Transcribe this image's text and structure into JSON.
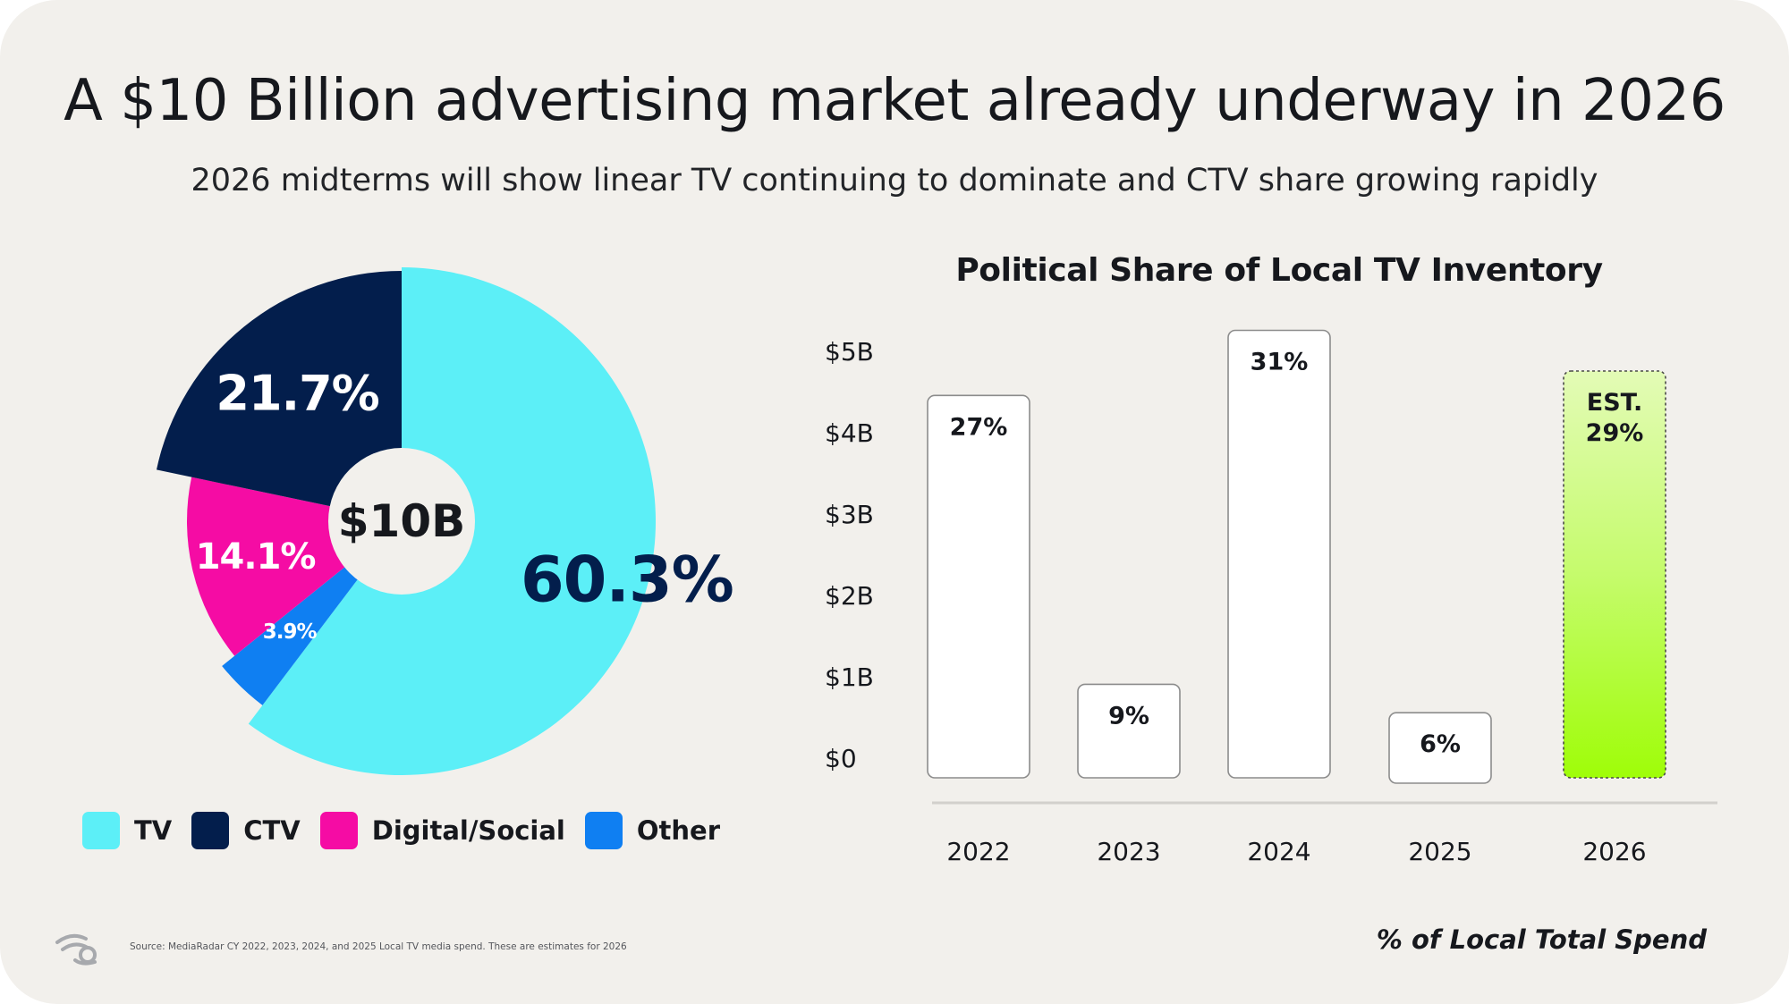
{
  "header": {
    "title": "A $10 Billion advertising market already underway in 2026",
    "subtitle": "2026 midterms will show linear TV continuing to dominate and CTV share growing rapidly"
  },
  "chart_data": [
    {
      "type": "pie",
      "center_label": "$10B",
      "slices": [
        {
          "name": "TV",
          "value": 60.3,
          "label": "60.3%",
          "color": "#5ceff7"
        },
        {
          "name": "Other",
          "value": 3.9,
          "label": "3.9%",
          "color": "#0f7ff2"
        },
        {
          "name": "Digital/Social",
          "value": 14.1,
          "label": "14.1%",
          "color": "#f50ca4"
        },
        {
          "name": "CTV",
          "value": 21.7,
          "label": "21.7%",
          "color": "#031e4c"
        }
      ],
      "legend": [
        {
          "label": "TV",
          "color": "#5ceff7"
        },
        {
          "label": "CTV",
          "color": "#031e4c"
        },
        {
          "label": "Digital/Social",
          "color": "#f50ca4"
        },
        {
          "label": "Other",
          "color": "#0f7ff2"
        }
      ],
      "legend_position": "bottom"
    },
    {
      "type": "bar",
      "title": "Political Share of Local TV Inventory",
      "categories": [
        "2022",
        "2023",
        "2024",
        "2025",
        "2026"
      ],
      "values": [
        4.7,
        1.15,
        5.5,
        0.8,
        5.0
      ],
      "bar_labels": [
        "27%",
        "9%",
        "31%",
        "6%",
        "EST.\n29%"
      ],
      "estimated": [
        false,
        false,
        false,
        false,
        true
      ],
      "y_ticks": [
        "$0",
        "$1B",
        "$2B",
        "$3B",
        "$4B",
        "$5B"
      ],
      "y_tick_values": [
        0,
        1,
        2,
        3,
        4,
        5
      ],
      "ylim": [
        0,
        5.5
      ],
      "grid": false,
      "xlabel": "% of Local Total Spend",
      "ylabel": ""
    }
  ],
  "footer": {
    "source": "Source: MediaRadar CY 2022, 2023, 2024, and 2025 Local TV media spend. These are estimates for 2026",
    "footnote": "% of Local Total Spend"
  }
}
